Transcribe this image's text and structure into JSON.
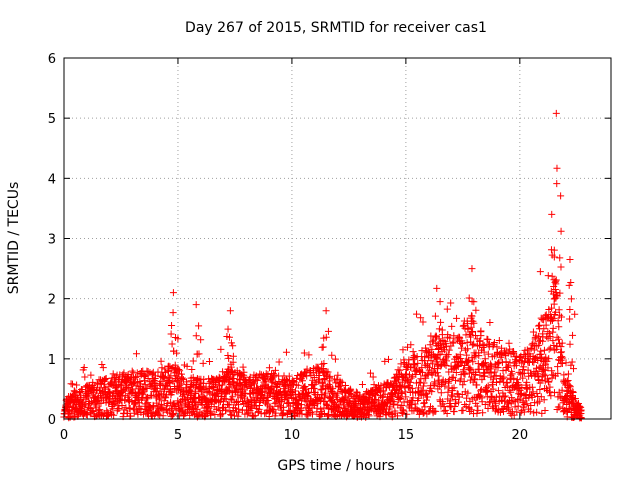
{
  "chart_data": {
    "type": "scatter",
    "title": "Day 267 of 2015, SRMTID for receiver cas1",
    "xlabel": "GPS time / hours",
    "ylabel": "SRMTID / TECUs",
    "xlim": [
      0,
      24
    ],
    "ylim": [
      0,
      6
    ],
    "x_ticks": [
      0,
      5,
      10,
      15,
      20
    ],
    "x_tick_labels": [
      "0",
      "5",
      "10",
      "15",
      "20"
    ],
    "y_ticks": [
      0,
      1,
      2,
      3,
      4,
      5,
      6
    ],
    "y_tick_labels": [
      "0",
      "1",
      "2",
      "3",
      "4",
      "5",
      "6"
    ],
    "grid": true,
    "series": [
      {
        "name": "SRMTID",
        "color": "#ff0000",
        "marker": "plus",
        "x_start": 0.0,
        "x_end": 22.7,
        "profile": [
          [
            0.0,
            0.15
          ],
          [
            0.5,
            0.25
          ],
          [
            1.0,
            0.3
          ],
          [
            2.0,
            0.35
          ],
          [
            3.0,
            0.4
          ],
          [
            4.0,
            0.4
          ],
          [
            4.9,
            0.45
          ],
          [
            5.5,
            0.3
          ],
          [
            6.0,
            0.35
          ],
          [
            7.0,
            0.35
          ],
          [
            7.3,
            0.45
          ],
          [
            8.0,
            0.35
          ],
          [
            9.0,
            0.4
          ],
          [
            10.0,
            0.35
          ],
          [
            11.0,
            0.45
          ],
          [
            12.0,
            0.35
          ],
          [
            13.0,
            0.2
          ],
          [
            14.0,
            0.3
          ],
          [
            14.5,
            0.35
          ],
          [
            15.0,
            0.55
          ],
          [
            16.0,
            0.6
          ],
          [
            16.5,
            0.75
          ],
          [
            17.0,
            0.7
          ],
          [
            17.8,
            0.9
          ],
          [
            18.2,
            0.75
          ],
          [
            19.0,
            0.6
          ],
          [
            20.0,
            0.55
          ],
          [
            20.5,
            0.6
          ],
          [
            21.0,
            0.85
          ],
          [
            21.3,
            1.1
          ],
          [
            21.6,
            1.3
          ],
          [
            22.0,
            0.35
          ],
          [
            22.7,
            0.1
          ]
        ],
        "peaks": [
          {
            "x": 4.8,
            "y": 2.1
          },
          {
            "x": 5.8,
            "y": 1.9
          },
          {
            "x": 7.3,
            "y": 1.8
          },
          {
            "x": 11.5,
            "y": 1.8
          },
          {
            "x": 16.5,
            "y": 1.95
          },
          {
            "x": 17.9,
            "y": 2.5
          },
          {
            "x": 20.9,
            "y": 2.45
          },
          {
            "x": 21.4,
            "y": 3.4
          },
          {
            "x": 21.6,
            "y": 5.08
          },
          {
            "x": 22.2,
            "y": 2.65
          }
        ]
      }
    ]
  }
}
